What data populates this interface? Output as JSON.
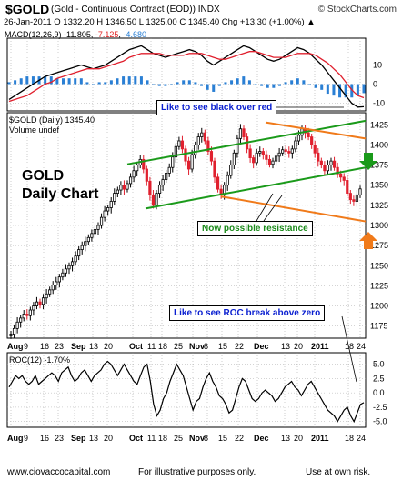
{
  "header": {
    "symbol": "$GOLD",
    "description": "(Gold - Continuous Contract (EOD)) INDX",
    "brand": "© StockCharts.com",
    "ohlc": "26-Jan-2011  O 1332.20  H 1346.50  L 1325.00  C 1345.40  Chg +13.30 (+1.00%) ▲"
  },
  "macd_panel": {
    "label_prefix": "MACD(12,26,9) -11.805, ",
    "signal_value": "-7.125",
    "sep": ", ",
    "hist_value": "-4.680",
    "colors": {
      "macd": "#000000",
      "signal": "#e02020",
      "histogram": "#2a7fd4"
    }
  },
  "price_panel": {
    "label": "$GOLD (Daily) 1345.40",
    "volume_label": "Volume undef",
    "title_line1": "GOLD",
    "title_line2": "Daily Chart"
  },
  "roc_panel": {
    "label": "ROC(12) -1.70%"
  },
  "annotations": {
    "black_over_red": "Like to see black over red",
    "possible_resistance": "Now possible resistance",
    "roc_break": "Like to see ROC break above zero"
  },
  "footer": {
    "left": "www.ciovaccocapital.com",
    "mid": "For illustrative purposes only.",
    "right": "Use at own risk."
  },
  "colors": {
    "up_candle": "#000000",
    "down_candle": "#e0202e",
    "green_channel": "#1a9a1a",
    "orange_channel": "#f07a1a",
    "callout_text": "#0a1fd0",
    "arrow_down": "#1a9a1a",
    "arrow_up": "#f07a1a"
  },
  "chart_data": [
    {
      "type": "line",
      "name": "MACD",
      "title": "MACD(12,26,9)",
      "series": [
        {
          "name": "MACD",
          "values": [
            -8,
            -6,
            -4,
            -2,
            0,
            2,
            4,
            5,
            6,
            7,
            8,
            9,
            10,
            9,
            8,
            9,
            10,
            12,
            14,
            16,
            18,
            19,
            20,
            18,
            16,
            15,
            14,
            15,
            16,
            17,
            18,
            17,
            15,
            12,
            10,
            12,
            14,
            16,
            18,
            20,
            19,
            17,
            15,
            13,
            12,
            13,
            15,
            17,
            19,
            18,
            16,
            13,
            10,
            6,
            2,
            -2,
            -6,
            -10,
            -12,
            -11.8
          ]
        },
        {
          "name": "Signal",
          "values": [
            -9,
            -8,
            -7,
            -6,
            -4,
            -2,
            0,
            1,
            3,
            4,
            5,
            6,
            7,
            8,
            8,
            8,
            9,
            10,
            11,
            12,
            14,
            15,
            16,
            16,
            16,
            16,
            15,
            15,
            15,
            15,
            16,
            16,
            16,
            15,
            14,
            13,
            13,
            14,
            15,
            16,
            17,
            17,
            16,
            15,
            14,
            14,
            14,
            15,
            16,
            16,
            16,
            15,
            13,
            11,
            8,
            5,
            1,
            -3,
            -6,
            -7.1
          ]
        }
      ],
      "histogram": [
        1,
        2,
        3,
        4,
        4,
        4,
        4,
        4,
        3,
        3,
        3,
        3,
        3,
        1,
        0,
        1,
        1,
        2,
        3,
        4,
        4,
        4,
        4,
        2,
        0,
        -1,
        -1,
        0,
        1,
        2,
        2,
        1,
        -1,
        -3,
        -4,
        -1,
        1,
        2,
        3,
        4,
        2,
        0,
        -1,
        -2,
        -2,
        -1,
        1,
        2,
        3,
        2,
        0,
        -2,
        -3,
        -5,
        -6,
        -7,
        -7,
        -7,
        -6,
        -4.7
      ],
      "y_ticks": [
        10,
        0,
        -10
      ],
      "ylim": [
        -14,
        24
      ]
    },
    {
      "type": "line",
      "name": "Price",
      "title": "$GOLD (Daily) 1345.40",
      "x_ticks": [
        "Aug",
        "9",
        "16",
        "23",
        "Sep",
        "13",
        "20",
        "Oct",
        "11",
        "18",
        "25",
        "Nov",
        "8",
        "15",
        "22",
        "Dec",
        "13",
        "20",
        "2011",
        "18",
        "24"
      ],
      "y_ticks": [
        1425,
        1400,
        1375,
        1350,
        1325,
        1300,
        1275,
        1250,
        1225,
        1200,
        1175
      ],
      "ylim": [
        1160,
        1440
      ],
      "values": [
        1165,
        1172,
        1180,
        1185,
        1190,
        1188,
        1195,
        1200,
        1205,
        1202,
        1210,
        1215,
        1220,
        1226,
        1230,
        1236,
        1241,
        1246,
        1250,
        1255,
        1262,
        1270,
        1275,
        1280,
        1285,
        1290,
        1295,
        1300,
        1310,
        1318,
        1322,
        1330,
        1340,
        1344,
        1350,
        1345,
        1352,
        1360,
        1368,
        1375,
        1382,
        1370,
        1355,
        1338,
        1325,
        1340,
        1350,
        1357,
        1365,
        1372,
        1385,
        1398,
        1405,
        1395,
        1380,
        1370,
        1388,
        1400,
        1410,
        1415,
        1405,
        1392,
        1380,
        1360,
        1345,
        1338,
        1350,
        1362,
        1375,
        1390,
        1408,
        1420,
        1410,
        1395,
        1384,
        1378,
        1390,
        1392,
        1388,
        1382,
        1376,
        1380,
        1386,
        1390,
        1394,
        1392,
        1390,
        1395,
        1405,
        1412,
        1420,
        1415,
        1410,
        1400,
        1390,
        1380,
        1375,
        1368,
        1375,
        1380,
        1372,
        1364,
        1360,
        1356,
        1340,
        1332,
        1330,
        1338,
        1345.4
      ]
    },
    {
      "type": "line",
      "name": "ROC",
      "title": "ROC(12) -1.70%",
      "y_ticks": [
        5.0,
        2.5,
        0.0,
        -2.5,
        -5.0
      ],
      "ylim": [
        -6,
        7
      ],
      "values": [
        1,
        2,
        3,
        2.5,
        3,
        2,
        1.5,
        2,
        3,
        1.5,
        2,
        2.5,
        3,
        3.5,
        3,
        2,
        3.5,
        4,
        4.5,
        3,
        2,
        2.5,
        3.5,
        4,
        3,
        2,
        3,
        3.5,
        4,
        5,
        5.5,
        5,
        4,
        3,
        4,
        5,
        4,
        3,
        2,
        1.5,
        3,
        4.5,
        5,
        2,
        -2,
        -4,
        -3,
        -1,
        0,
        2,
        3.5,
        5,
        4,
        3,
        1,
        -1,
        -3,
        -1.5,
        -1,
        1,
        2.5,
        3.5,
        2,
        1,
        -0.5,
        -1,
        -2,
        -3.5,
        -3,
        -1,
        1,
        2.5,
        2,
        0.5,
        -1,
        -1.5,
        -1,
        0,
        0.5,
        0,
        -0.5,
        -1.5,
        -1,
        0,
        1,
        1.5,
        2,
        1,
        0.5,
        -0.5,
        0.5,
        1.5,
        2,
        1,
        0,
        -1,
        -2,
        -3,
        -3.5,
        -4,
        -5,
        -4,
        -3,
        -2.5,
        -4,
        -5,
        -3.5,
        -2,
        -1.7
      ]
    }
  ]
}
